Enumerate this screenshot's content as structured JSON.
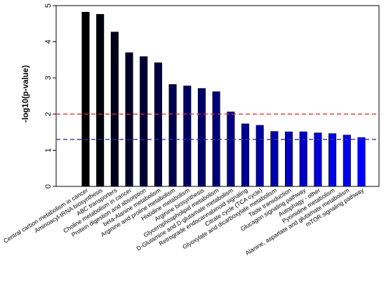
{
  "chart_data": {
    "type": "bar",
    "title": "",
    "xlabel": "",
    "ylabel": "-log10(p-value)",
    "ylim": [
      0,
      5
    ],
    "yticks": [
      0,
      1,
      2,
      3,
      4,
      5
    ],
    "grid": false,
    "categories": [
      "Central carbon metabolism in cancer",
      "Aminoacyl-tRNA biosynthesis",
      "ABC transporters",
      "Choline metabolism in cancer",
      "Protein digestion and absorption",
      "beta-Alanine metabolism",
      "Arginine and proline metabolism",
      "Histidine metabolism",
      "Arginine biosynthesis",
      "Glycerophospholipid metabolism",
      "D-Glutamine and D-glutamate metabolism",
      "Retrograde endocannabinoid signaling",
      "Citrate cycle (TCA cycle)",
      "Glyoxylate and dicarboxylate metabolism",
      "Taste transduction",
      "Glucagon signaling pathway",
      "Autophagy - other",
      "Pyrimidine metabolism",
      "Alanine, aspartate and glutamate metabolism",
      "mTOR signaling pathway"
    ],
    "values": [
      4.82,
      4.76,
      4.27,
      3.7,
      3.59,
      3.42,
      2.82,
      2.78,
      2.71,
      2.62,
      2.06,
      1.73,
      1.69,
      1.52,
      1.51,
      1.51,
      1.48,
      1.46,
      1.42,
      1.35
    ],
    "bar_color_start": "#000000",
    "bar_color_end": "#0000ff",
    "reference_lines": [
      {
        "y": 2.0,
        "color": "#e03030",
        "style": "dashed"
      },
      {
        "y": 1.3,
        "color": "#3030a0",
        "style": "dashed"
      }
    ]
  }
}
